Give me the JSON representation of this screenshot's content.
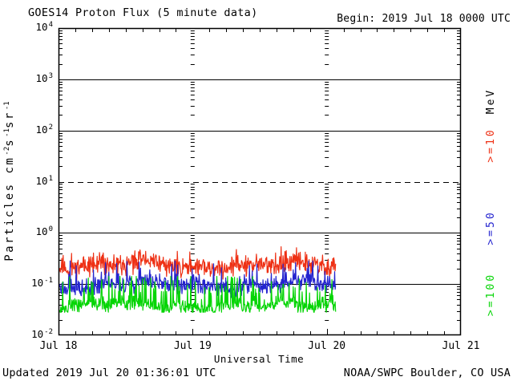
{
  "header": {
    "title": "GOES14 Proton Flux (5 minute data)",
    "begin_label": "Begin: 2019 Jul 18 0000 UTC"
  },
  "footer": {
    "updated_label": "Updated 2019 Jul 20 01:36:01 UTC",
    "source_label": "NOAA/SWPC Boulder, CO USA"
  },
  "axes": {
    "x_label": "Universal Time",
    "x_ticks": [
      "Jul 18",
      "Jul 19",
      "Jul 20",
      "Jul 21"
    ],
    "y_tick_exponents": [
      4,
      3,
      2,
      1,
      0,
      -1,
      -2
    ],
    "y_label_parts": [
      [
        "t",
        "Particles cm"
      ],
      [
        "sup",
        "-2"
      ],
      [
        "t",
        "s"
      ],
      [
        "sup",
        "-1"
      ],
      [
        "t",
        "sr"
      ],
      [
        "sup",
        "-1"
      ]
    ],
    "units_label": "MeV"
  },
  "colors": {
    "axis": "#000000",
    "background": "#ffffff",
    "red": "#ee3014",
    "blue": "#2424cf",
    "green": "#06d506"
  },
  "chart_data": {
    "type": "line",
    "title": "GOES14 Proton Flux (5 minute data)",
    "xlabel": "Universal Time",
    "ylabel": "Particles cm^-2 s^-1 sr^-1",
    "y_scale": "log",
    "ylim": [
      0.01,
      10000
    ],
    "x_tick_labels": [
      "Jul 18",
      "Jul 19",
      "Jul 20",
      "Jul 21"
    ],
    "begin_utc": "2019 Jul 18 0000 UTC",
    "updated_utc": "2019 Jul 20 01:36:01 UTC",
    "data_span_hours": 49.6,
    "cadence": "5 minute",
    "units": "MeV",
    "grid": {
      "solid_horizontal_values": [
        1000,
        100,
        1,
        0.1
      ],
      "dashed_horizontal_values": [
        10
      ],
      "day_boundary_tick_columns": [
        "Jul 19",
        "Jul 20"
      ]
    },
    "legend_position": "right-rotated",
    "series": [
      {
        "name": ">=10 MeV",
        "legend_label": ">=10",
        "color": "#ee3014",
        "typical_flux": 0.23,
        "min_flux": 0.12,
        "max_flux": 0.55,
        "synth": {
          "seed": 11,
          "base_log10": -0.64,
          "jitter_log10": 0.24,
          "spike_probability": 0.05,
          "spike_max_log10": 0.28,
          "floor_log10": -0.95,
          "cap_log10": -0.27
        }
      },
      {
        "name": ">=50 MeV",
        "legend_label": ">=50",
        "color": "#2424cf",
        "typical_flux": 0.095,
        "min_flux": 0.05,
        "max_flux": 0.28,
        "synth": {
          "seed": 23,
          "base_log10": -1.02,
          "jitter_log10": 0.2,
          "spike_probability": 0.1,
          "spike_max_log10": 0.45,
          "floor_log10": -1.31,
          "cap_log10": -0.55
        }
      },
      {
        "name": ">=100 MeV",
        "legend_label": ">=100",
        "color": "#06d506",
        "typical_flux": 0.037,
        "min_flux": 0.028,
        "max_flux": 0.14,
        "synth": {
          "seed": 37,
          "base_log10": -1.43,
          "jitter_log10": 0.16,
          "spike_probability": 0.25,
          "spike_max_log10": 0.6,
          "floor_log10": -1.55,
          "cap_log10": -0.85
        }
      }
    ]
  }
}
